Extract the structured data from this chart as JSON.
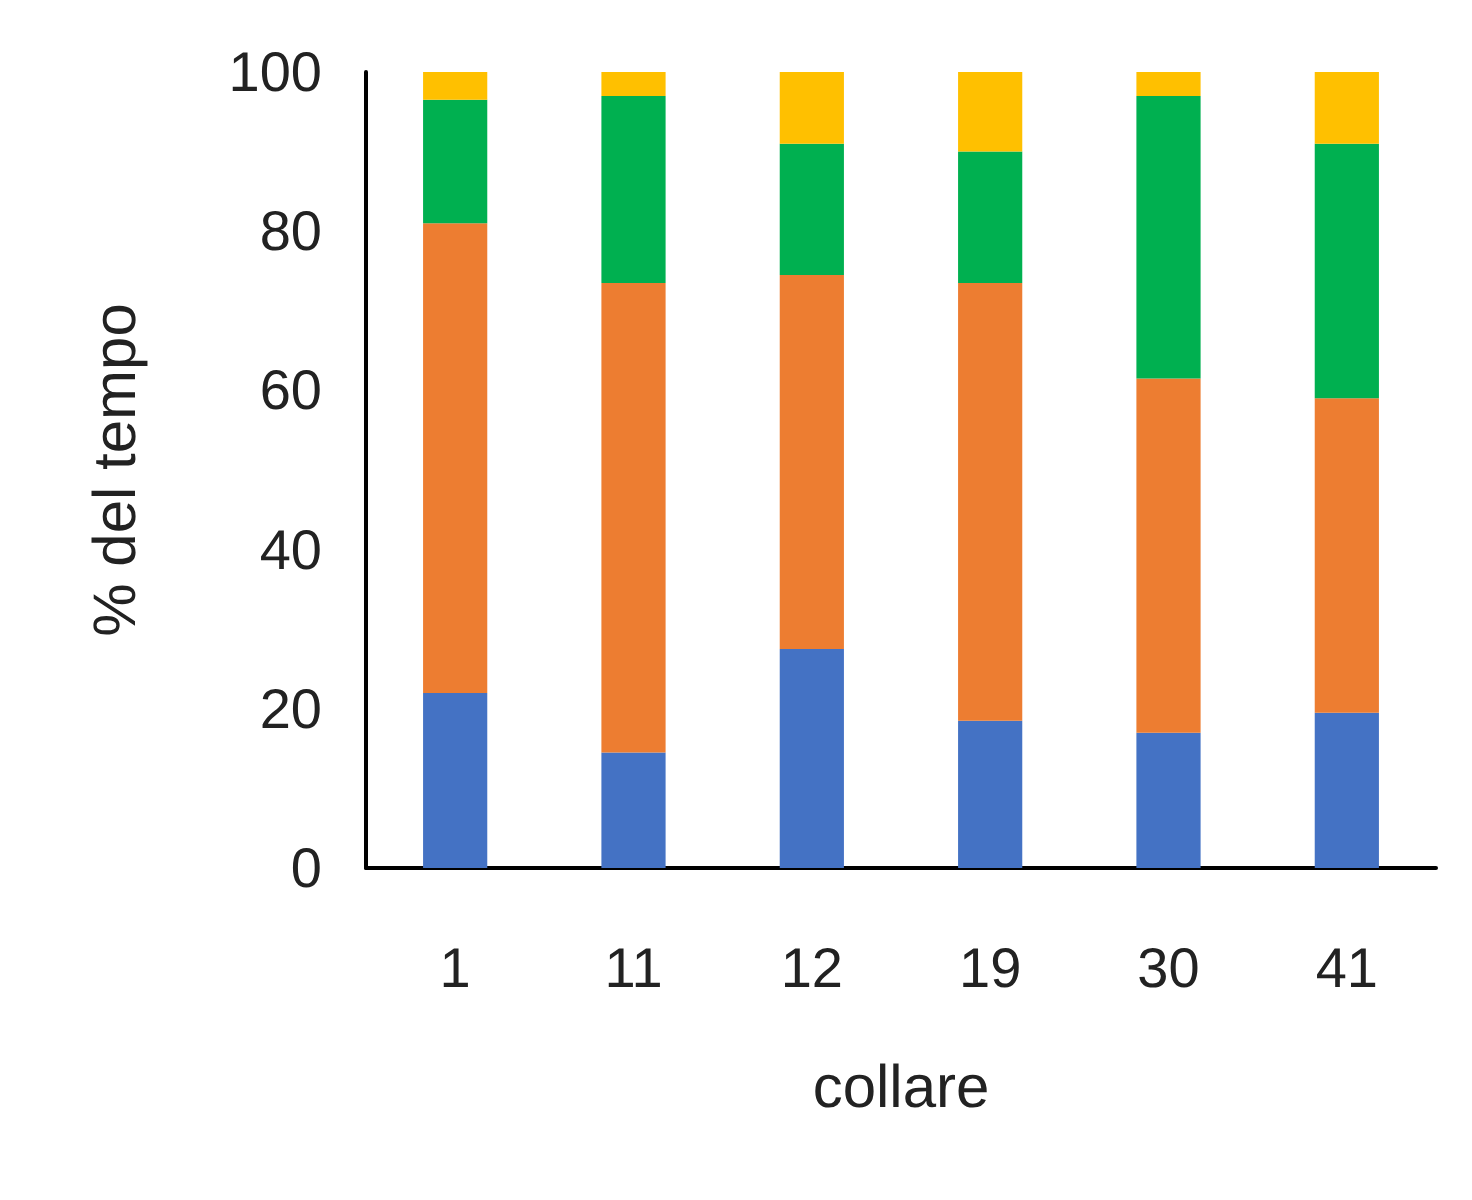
{
  "chart_data": {
    "type": "bar",
    "stacked": true,
    "xlabel": "collare",
    "ylabel": "% del tempo",
    "categories": [
      "1",
      "11",
      "12",
      "19",
      "30",
      "41"
    ],
    "series": [
      {
        "color": "#4472c4",
        "values": [
          22,
          14.5,
          27.5,
          18.5,
          17,
          19.5
        ]
      },
      {
        "color": "#ed7d31",
        "values": [
          59,
          59,
          47,
          55,
          44.5,
          39.5
        ]
      },
      {
        "color": "#00b050",
        "values": [
          15.5,
          23.5,
          16.5,
          16.5,
          35.5,
          32
        ]
      },
      {
        "color": "#ffc000",
        "values": [
          3.5,
          3,
          9,
          10,
          3,
          9
        ]
      }
    ],
    "ylim": [
      0,
      100
    ],
    "yticks": [
      0,
      20,
      40,
      60,
      80,
      100
    ],
    "grid": false
  }
}
